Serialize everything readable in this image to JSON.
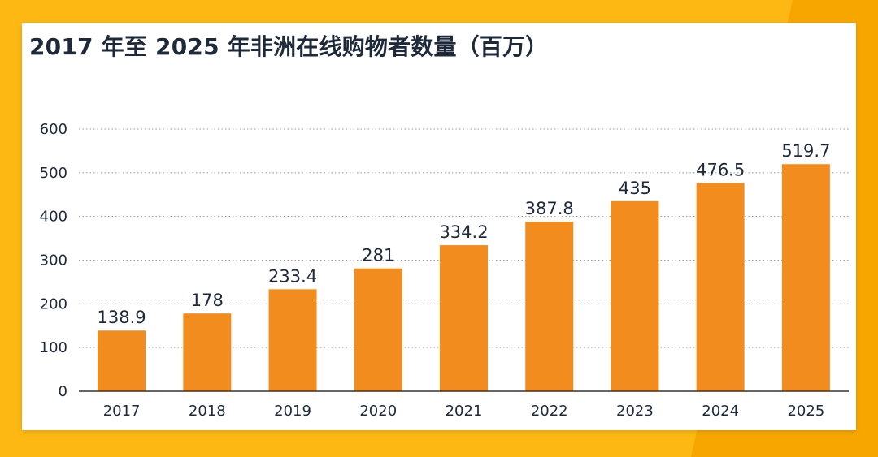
{
  "chart_data": {
    "type": "bar",
    "title": "2017 年至 2025 年非洲在线购物者数量（百万）",
    "xlabel": "",
    "ylabel": "",
    "categories": [
      "2017",
      "2018",
      "2019",
      "2020",
      "2021",
      "2022",
      "2023",
      "2024",
      "2025"
    ],
    "values": [
      138.9,
      178,
      233.4,
      281,
      334.2,
      387.8,
      435,
      476.5,
      519.7
    ],
    "data_labels": [
      "138.9",
      "178",
      "233.4",
      "281",
      "334.2",
      "387.8",
      "435",
      "476.5",
      "519.7"
    ],
    "yticks": [
      0,
      100,
      200,
      300,
      400,
      500,
      600
    ],
    "ylim": [
      0,
      600
    ],
    "grid": true,
    "grid_style": "dotted",
    "legend": "none",
    "bar_color": "#F28C1E"
  },
  "colors": {
    "background": "#FDB813",
    "background_accent": "#F7A600",
    "card": "#FFFFFF",
    "text": "#1E2A3A",
    "grid": "#9A9A9A",
    "axis": "#333333"
  }
}
